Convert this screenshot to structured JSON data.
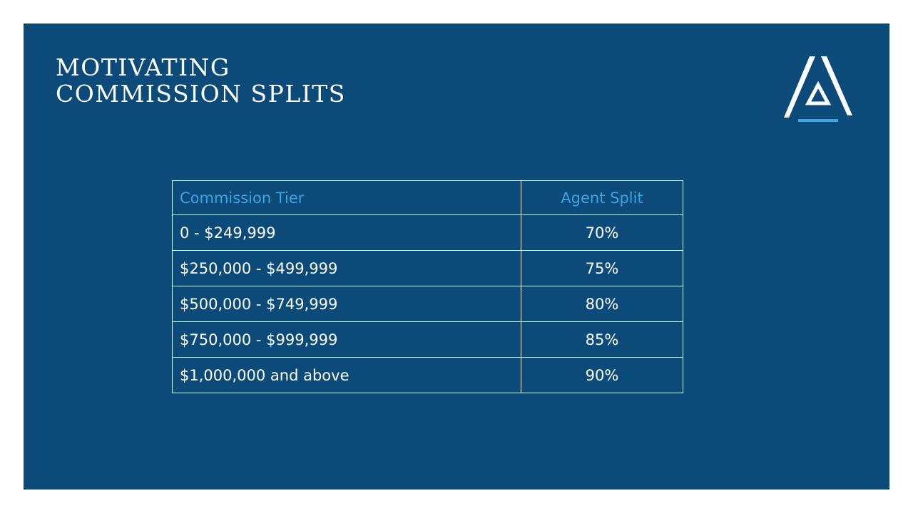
{
  "slide": {
    "title_line1": "MOTIVATING",
    "title_line2": "COMMISSION SPLITS",
    "logo_name": "triangle-a-logo",
    "accent_color": "#3fa3e0",
    "background_color": "#0c4a7a"
  },
  "table": {
    "headers": [
      "Commission Tier",
      "Agent Split"
    ],
    "rows": [
      {
        "tier": "0 - $249,999",
        "split": "70%"
      },
      {
        "tier": "$250,000 - $499,999",
        "split": "75%"
      },
      {
        "tier": "$500,000 - $749,999",
        "split": "80%"
      },
      {
        "tier": "$750,000 - $999,999",
        "split": "85%"
      },
      {
        "tier": "$1,000,000 and above",
        "split": "90%"
      }
    ]
  }
}
